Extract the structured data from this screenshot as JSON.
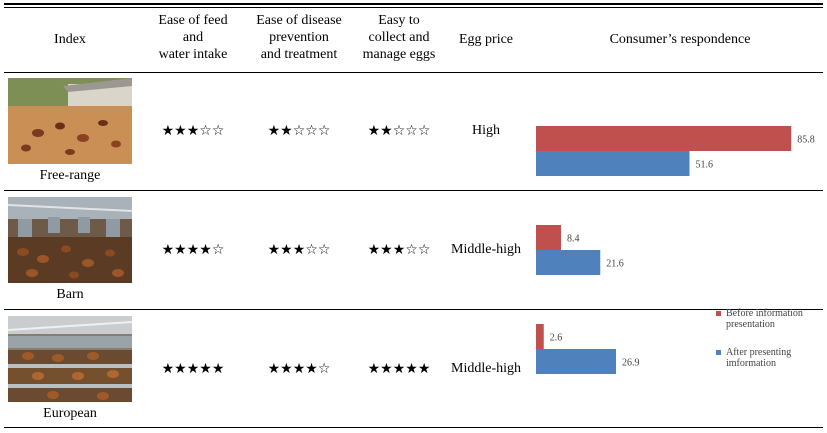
{
  "table": {
    "headers": {
      "index": "Index",
      "feed": "Ease of feed\nand\nwater intake",
      "disease": "Ease of disease\nprevention\nand treatment",
      "eggs": "Easy to\ncollect and\nmanage eggs",
      "price": "Egg price",
      "consumer": "Consumer’s respondence"
    },
    "rows": [
      {
        "name": "Free-range",
        "feed": "★★★☆☆",
        "disease": "★★☆☆☆",
        "eggs": "★★☆☆☆",
        "price": "High",
        "photo_icon": "free-range-hens-photo",
        "feed_rating": 3,
        "disease_rating": 2,
        "eggs_rating": 2
      },
      {
        "name": "Barn",
        "feed": "★★★★☆",
        "disease": "★★★☆☆",
        "eggs": "★★★☆☆",
        "price": "Middle-high",
        "photo_icon": "barn-hens-photo",
        "feed_rating": 4,
        "disease_rating": 3,
        "eggs_rating": 3
      },
      {
        "name": "European",
        "feed": "★★★★★",
        "disease": "★★★★☆",
        "eggs": "★★★★★",
        "price": "Middle-high",
        "photo_icon": "european-cage-hens-photo",
        "feed_rating": 5,
        "disease_rating": 4,
        "eggs_rating": 5
      }
    ]
  },
  "chart_data": {
    "type": "bar",
    "orientation": "horizontal",
    "categories": [
      "Free-range",
      "Barn",
      "European"
    ],
    "series": [
      {
        "name": "Before information presentation",
        "values": [
          85.8,
          8.4,
          2.6
        ],
        "color": "#c0504d"
      },
      {
        "name": "After presenting imformation",
        "values": [
          51.6,
          21.6,
          26.9
        ],
        "color": "#4f81bd"
      }
    ],
    "xlim": [
      0,
      100
    ],
    "data_labels": true,
    "legend": "right"
  },
  "legend": {
    "before_label": "Before information\npresentation",
    "after_label": "After presenting\nimformation"
  },
  "colors": {
    "before": "#c0504d",
    "after": "#4f81bd",
    "rule": "#000000"
  }
}
